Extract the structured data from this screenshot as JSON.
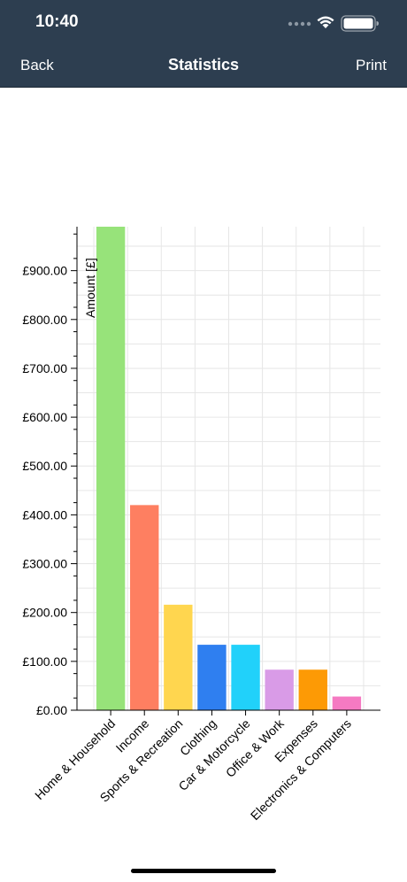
{
  "status_bar": {
    "time": "10:40"
  },
  "nav": {
    "back_label": "Back",
    "title": "Statistics",
    "print_label": "Print"
  },
  "chart_data": {
    "type": "bar",
    "ylabel": "Amount [£]",
    "xlabel": "",
    "categories": [
      "Home & Household",
      "Income",
      "Sports & Recreation",
      "Clothing",
      "Car & Motorcycle",
      "Office & Work",
      "Expenses",
      "Electronics & Computers"
    ],
    "values": [
      990,
      420,
      216,
      134,
      134,
      83,
      83,
      28
    ],
    "colors": [
      "#97e37a",
      "#fe7f61",
      "#ffd64f",
      "#2f7ff0",
      "#21d1fa",
      "#d99be7",
      "#fd9a05",
      "#f57ac2"
    ],
    "ylim": [
      0,
      990
    ],
    "yticks": [
      0,
      100,
      200,
      300,
      400,
      500,
      600,
      700,
      800,
      900
    ],
    "ytick_labels": [
      "£0.00",
      "£100.00",
      "£200.00",
      "£300.00",
      "£400.00",
      "£500.00",
      "£600.00",
      "£700.00",
      "£800.00",
      "£900.00"
    ],
    "grid": true,
    "legend": "none"
  }
}
